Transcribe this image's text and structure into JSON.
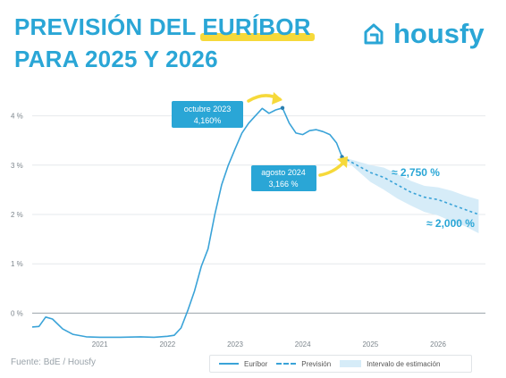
{
  "title": {
    "line1_prefix": "PREVISIÓN DEL ",
    "line1_highlight": "EURÍBOR",
    "line2": "PARA 2025 Y 2026"
  },
  "brand": {
    "name": "housfy",
    "icon": "housfy-logo-icon"
  },
  "source": "Fuente: BdE / Housfy",
  "colors": {
    "accent": "#2aa6d6",
    "line": "#3aa3d8",
    "band": "#d6ecf8",
    "highlight": "#f6d93a",
    "label_bg": "#2aa6d6"
  },
  "chart_data": {
    "type": "line",
    "ylim": [
      -0.5,
      4.5
    ],
    "xlim": [
      2020.0,
      2026.7
    ],
    "y_ticks": [
      {
        "value": 0,
        "label": "0 %"
      },
      {
        "value": 1,
        "label": "1 %"
      },
      {
        "value": 2,
        "label": "2 %"
      },
      {
        "value": 3,
        "label": "3 %"
      },
      {
        "value": 4,
        "label": "4 %"
      }
    ],
    "x_ticks": [
      {
        "value": 2021,
        "label": "2021"
      },
      {
        "value": 2022,
        "label": "2022"
      },
      {
        "value": 2023,
        "label": "2023"
      },
      {
        "value": 2024,
        "label": "2024"
      },
      {
        "value": 2025,
        "label": "2025"
      },
      {
        "value": 2026,
        "label": "2026"
      }
    ],
    "grid": "horizontal",
    "legend": "bottom-right",
    "series": [
      {
        "name": "Euríbor",
        "style": "solid",
        "x": [
          2020.0,
          2020.1,
          2020.2,
          2020.3,
          2020.45,
          2020.6,
          2020.8,
          2021.0,
          2021.3,
          2021.6,
          2021.8,
          2022.0,
          2022.1,
          2022.2,
          2022.3,
          2022.4,
          2022.5,
          2022.6,
          2022.7,
          2022.8,
          2022.9,
          2023.0,
          2023.1,
          2023.2,
          2023.3,
          2023.4,
          2023.5,
          2023.6,
          2023.7,
          2023.8,
          2023.9,
          2024.0,
          2024.1,
          2024.2,
          2024.3,
          2024.4,
          2024.5,
          2024.58
        ],
        "y": [
          -0.28,
          -0.27,
          -0.08,
          -0.12,
          -0.32,
          -0.43,
          -0.48,
          -0.49,
          -0.49,
          -0.48,
          -0.49,
          -0.47,
          -0.45,
          -0.3,
          0.05,
          0.45,
          0.95,
          1.3,
          2.0,
          2.6,
          3.0,
          3.33,
          3.65,
          3.85,
          4.0,
          4.15,
          4.05,
          4.12,
          4.16,
          3.85,
          3.65,
          3.62,
          3.7,
          3.72,
          3.68,
          3.62,
          3.45,
          3.166
        ]
      },
      {
        "name": "Previsión",
        "style": "dashed",
        "x": [
          2024.58,
          2024.8,
          2025.0,
          2025.2,
          2025.4,
          2025.6,
          2025.8,
          2026.0,
          2026.2,
          2026.4,
          2026.6
        ],
        "y": [
          3.166,
          3.0,
          2.85,
          2.75,
          2.6,
          2.45,
          2.35,
          2.3,
          2.2,
          2.1,
          2.0
        ]
      }
    ],
    "band": {
      "name": "Intervalo de estimación",
      "x": [
        2024.58,
        2024.8,
        2025.0,
        2025.2,
        2025.4,
        2025.6,
        2025.8,
        2026.0,
        2026.2,
        2026.4,
        2026.6
      ],
      "upper": [
        3.166,
        3.08,
        3.0,
        2.95,
        2.82,
        2.68,
        2.58,
        2.55,
        2.48,
        2.38,
        2.3
      ],
      "lower": [
        3.166,
        2.9,
        2.66,
        2.5,
        2.32,
        2.18,
        2.05,
        1.98,
        1.86,
        1.76,
        1.62
      ]
    },
    "annotations": [
      {
        "name": "peak",
        "label": "octubre 2023",
        "value": "4,160%",
        "x": 2023.7,
        "y": 4.16
      },
      {
        "name": "latest",
        "label": "agosto 2024",
        "value": "3,166 %",
        "x": 2024.58,
        "y": 3.166
      },
      {
        "name": "forecast-2025",
        "text": "≈ 2,750 %",
        "x": 2025.2,
        "y": 2.75
      },
      {
        "name": "forecast-2026",
        "text": "≈ 2,000 %",
        "x": 2026.6,
        "y": 2.0
      }
    ],
    "legend_entries": [
      "Euríbor",
      "Previsión",
      "Intervalo de estimación"
    ]
  }
}
